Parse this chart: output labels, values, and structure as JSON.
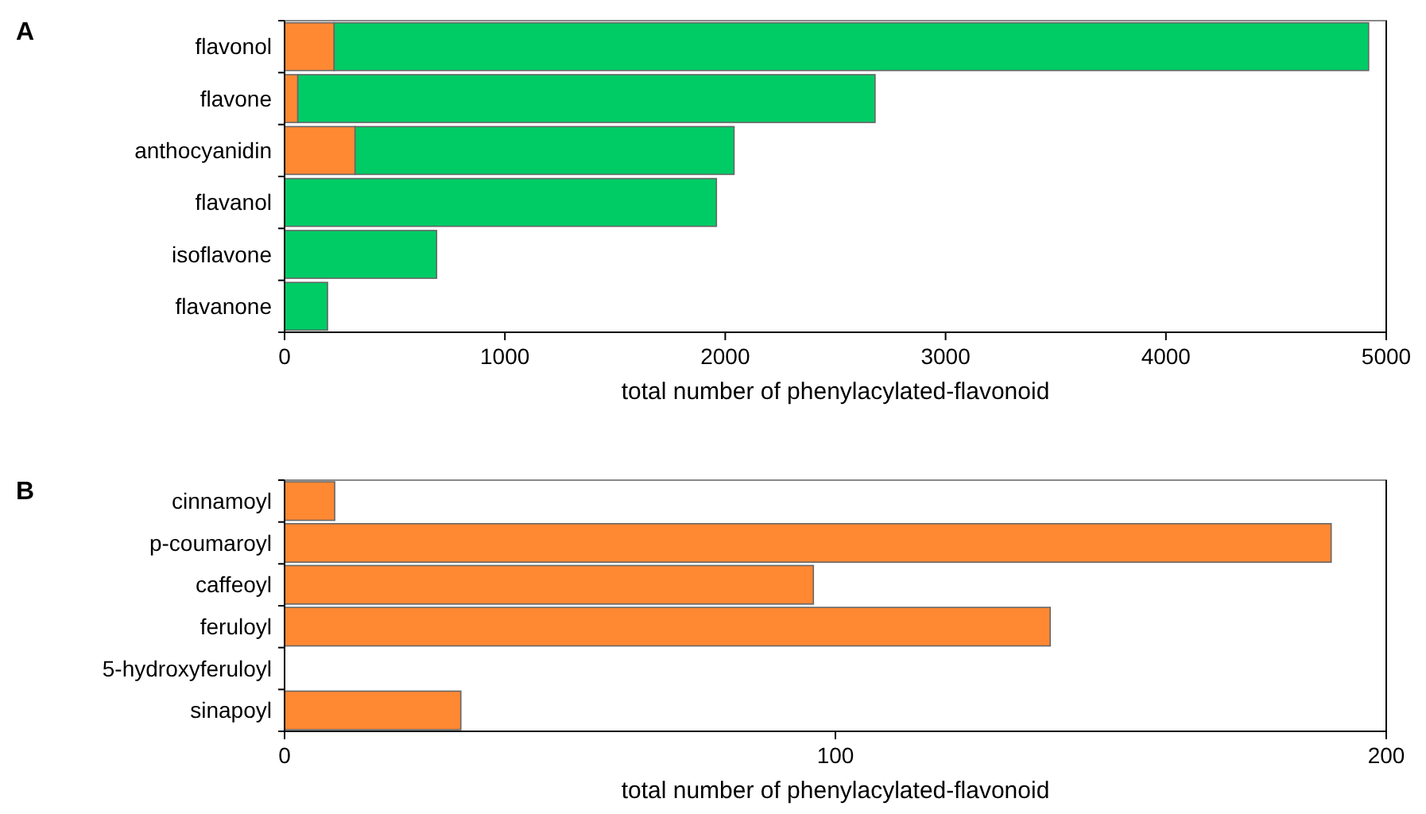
{
  "chart_data": [
    {
      "type": "bar",
      "title": "A",
      "orientation": "horizontal",
      "stacked": true,
      "categories": [
        "flavonol",
        "flavone",
        "anthocyanidin",
        "flavanol",
        "isoflavone",
        "flavanone"
      ],
      "series": [
        {
          "color": "#ff8833",
          "values": [
            225,
            60,
            320,
            0,
            0,
            0
          ]
        },
        {
          "color": "#00cc66",
          "values": [
            4695,
            2620,
            1720,
            1960,
            690,
            195
          ]
        }
      ],
      "xlim": [
        0,
        5000
      ],
      "xticks": [
        0,
        1000,
        2000,
        3000,
        4000,
        5000
      ],
      "xlabel": "total number of phenylacylated-flavonoid"
    },
    {
      "type": "bar",
      "title": "B",
      "orientation": "horizontal",
      "categories": [
        "cinnamoyl",
        "p-coumaroyl",
        "caffeoyl",
        "feruloyl",
        "5-hydroxyferuloyl",
        "sinapoyl"
      ],
      "series": [
        {
          "color": "#ff8833",
          "values": [
            9.1,
            190,
            96,
            139,
            0,
            32
          ]
        }
      ],
      "xlim": [
        0,
        200
      ],
      "xticks": [
        0,
        100,
        200
      ],
      "xlabel": "total number of phenylacylated-flavonoid"
    }
  ]
}
